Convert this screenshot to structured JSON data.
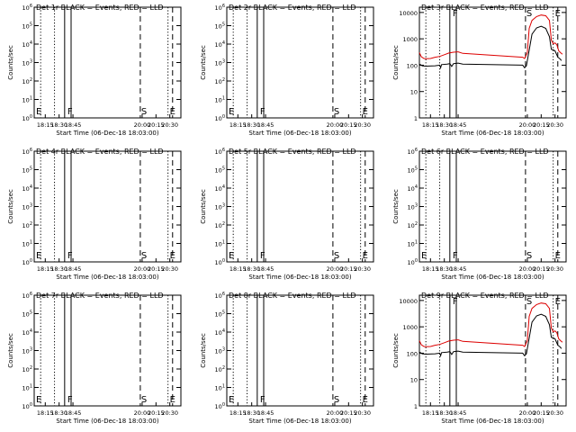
{
  "chart_data": [
    {
      "type": "line",
      "detector": "Det 1r",
      "title": "Det 1r BLACK = Events, RED = LLD",
      "log_range": "low",
      "has_data": false,
      "ylabel": "Counts/sec",
      "xlabel": "Start Time (06-Dec-18 18:03:00)",
      "x_ticks": [
        "18:15",
        "18:30",
        "18:45",
        "20:00",
        "20:15",
        "20:30"
      ],
      "y_tick_labels": [
        "10^0",
        "10^1",
        "10^2",
        "10^3",
        "10^4",
        "10^5",
        "10^6"
      ],
      "markers": [
        "E",
        "F",
        "S",
        "E"
      ]
    },
    {
      "type": "line",
      "detector": "Det 2r",
      "title": "Det 2r BLACK = Events, RED = LLD",
      "log_range": "low",
      "has_data": false,
      "ylabel": "Counts/sec",
      "xlabel": "Start Time (06-Dec-18 18:03:00)",
      "x_ticks": [
        "18:15",
        "18:30",
        "18:45",
        "20:00",
        "20:15",
        "20:30"
      ],
      "y_tick_labels": [
        "10^0",
        "10^1",
        "10^2",
        "10^3",
        "10^4",
        "10^5",
        "10^6"
      ],
      "markers": [
        "E",
        "F",
        "S",
        "E"
      ]
    },
    {
      "type": "line",
      "detector": "Det 3r",
      "title": "Det 3r BLACK = Events, RED = LLD",
      "log_range": "high",
      "has_data": true,
      "ylabel": "Counts/sec",
      "xlabel": "Start Time (06-Dec-18 18:03:00)",
      "x_ticks": [
        "18:15",
        "18:30",
        "18:45",
        "20:00",
        "20:15",
        "20:30"
      ],
      "y_tick_labels": [
        "1",
        "10",
        "100",
        "1000",
        "10000"
      ],
      "markers": [
        "F",
        "S",
        "E"
      ]
    },
    {
      "type": "line",
      "detector": "Det 4r",
      "title": "Det 4r BLACK = Events, RED = LLD",
      "log_range": "low",
      "has_data": false,
      "ylabel": "Counts/sec",
      "xlabel": "Start Time (06-Dec-18 18:03:00)",
      "x_ticks": [
        "18:15",
        "18:30",
        "18:45",
        "20:00",
        "20:15",
        "20:30"
      ],
      "y_tick_labels": [
        "10^0",
        "10^1",
        "10^2",
        "10^3",
        "10^4",
        "10^5",
        "10^6"
      ],
      "markers": [
        "E",
        "F",
        "S",
        "E"
      ]
    },
    {
      "type": "line",
      "detector": "Det 5r",
      "title": "Det 5r BLACK = Events, RED = LLD",
      "log_range": "low",
      "has_data": false,
      "ylabel": "Counts/sec",
      "xlabel": "Start Time (06-Dec-18 18:03:00)",
      "x_ticks": [
        "18:15",
        "18:30",
        "18:45",
        "20:00",
        "20:15",
        "20:30"
      ],
      "y_tick_labels": [
        "10^0",
        "10^1",
        "10^2",
        "10^3",
        "10^4",
        "10^5",
        "10^6"
      ],
      "markers": [
        "E",
        "F",
        "S",
        "E"
      ]
    },
    {
      "type": "line",
      "detector": "Det 6r",
      "title": "Det 6r BLACK = Events, RED = LLD",
      "log_range": "low",
      "has_data": false,
      "ylabel": "Counts/sec",
      "xlabel": "Start Time (06-Dec-18 18:03:00)",
      "x_ticks": [
        "18:15",
        "18:30",
        "18:45",
        "20:00",
        "20:15",
        "20:30"
      ],
      "y_tick_labels": [
        "10^0",
        "10^1",
        "10^2",
        "10^3",
        "10^4",
        "10^5",
        "10^6"
      ],
      "markers": [
        "E",
        "F",
        "S",
        "E"
      ]
    },
    {
      "type": "line",
      "detector": "Det 7r",
      "title": "Det 7r BLACK = Events, RED = LLD",
      "log_range": "low",
      "has_data": false,
      "ylabel": "Counts/sec",
      "xlabel": "Start Time (06-Dec-18 18:03:00)",
      "x_ticks": [
        "18:15",
        "18:30",
        "18:45",
        "20:00",
        "20:15",
        "20:30"
      ],
      "y_tick_labels": [
        "10^0",
        "10^1",
        "10^2",
        "10^3",
        "10^4",
        "10^5",
        "10^6"
      ],
      "markers": [
        "E",
        "F",
        "S",
        "E"
      ]
    },
    {
      "type": "line",
      "detector": "Det 8r",
      "title": "Det 8r BLACK = Events, RED = LLD",
      "log_range": "low",
      "has_data": false,
      "ylabel": "Counts/sec",
      "xlabel": "Start Time (06-Dec-18 18:03:00)",
      "x_ticks": [
        "18:15",
        "18:30",
        "18:45",
        "20:00",
        "20:15",
        "20:30"
      ],
      "y_tick_labels": [
        "10^0",
        "10^1",
        "10^2",
        "10^3",
        "10^4",
        "10^5",
        "10^6"
      ],
      "markers": [
        "E",
        "F",
        "S",
        "E"
      ]
    },
    {
      "type": "line",
      "detector": "Det 9r",
      "title": "Det 9r BLACK = Events, RED = LLD",
      "log_range": "high",
      "has_data": true,
      "ylabel": "Counts/sec",
      "xlabel": "Start Time (06-Dec-18 18:03:00)",
      "x_ticks": [
        "18:15",
        "18:30",
        "18:45",
        "20:00",
        "20:15",
        "20:30"
      ],
      "y_tick_labels": [
        "1",
        "10",
        "100",
        "1000",
        "10000"
      ],
      "markers": [
        "F",
        "S",
        "E"
      ]
    }
  ],
  "time_axis": {
    "start": "18:03",
    "end": "20:42"
  },
  "event_lines": [
    {
      "time": "18:10",
      "style": "dotted"
    },
    {
      "time": "18:25",
      "style": "dotted"
    },
    {
      "time": "18:36",
      "style": "solid"
    },
    {
      "time": "18:43",
      "style": "solid"
    },
    {
      "time": "19:58",
      "style": "dashed"
    },
    {
      "time": "20:28",
      "style": "dotted"
    },
    {
      "time": "20:33",
      "style": "dashed"
    }
  ],
  "marker_times": {
    "E_start": "18:04",
    "F": "18:38",
    "S": "19:58",
    "E_end": "20:29"
  },
  "series": [
    {
      "color": "#000000",
      "points": [
        [
          "18:03",
          110
        ],
        [
          "18:06",
          95
        ],
        [
          "18:10",
          92
        ],
        [
          "18:20",
          95
        ],
        [
          "18:25",
          100
        ],
        [
          "18:26",
          80
        ],
        [
          "18:27",
          105
        ],
        [
          "18:33",
          110
        ],
        [
          "18:36",
          115
        ],
        [
          "18:38",
          90
        ],
        [
          "18:40",
          115
        ],
        [
          "18:45",
          120
        ],
        [
          "18:50",
          110
        ],
        [
          "19:55",
          100
        ],
        [
          "19:57",
          80
        ],
        [
          "19:59",
          95
        ],
        [
          "20:05",
          1500
        ],
        [
          "20:10",
          2600
        ],
        [
          "20:15",
          3000
        ],
        [
          "20:20",
          2500
        ],
        [
          "20:24",
          1200
        ],
        [
          "20:26",
          400
        ],
        [
          "20:28",
          380
        ],
        [
          "20:30",
          350
        ],
        [
          "20:33",
          200
        ],
        [
          "20:35",
          180
        ],
        [
          "20:37",
          150
        ]
      ]
    },
    {
      "color": "#dd0000",
      "points": [
        [
          "18:03",
          300
        ],
        [
          "18:05",
          210
        ],
        [
          "18:08",
          180
        ],
        [
          "18:10",
          175
        ],
        [
          "18:15",
          180
        ],
        [
          "18:20",
          200
        ],
        [
          "18:25",
          215
        ],
        [
          "18:30",
          250
        ],
        [
          "18:35",
          290
        ],
        [
          "18:40",
          310
        ],
        [
          "18:45",
          320
        ],
        [
          "18:50",
          280
        ],
        [
          "19:55",
          200
        ],
        [
          "19:57",
          180
        ],
        [
          "19:59",
          250
        ],
        [
          "20:00",
          300
        ],
        [
          "20:02",
          2500
        ],
        [
          "20:05",
          5000
        ],
        [
          "20:10",
          7000
        ],
        [
          "20:15",
          8000
        ],
        [
          "20:20",
          7500
        ],
        [
          "20:24",
          5000
        ],
        [
          "20:26",
          900
        ],
        [
          "20:28",
          650
        ],
        [
          "20:30",
          700
        ],
        [
          "20:32",
          600
        ],
        [
          "20:34",
          350
        ],
        [
          "20:36",
          300
        ],
        [
          "20:38",
          260
        ]
      ]
    }
  ]
}
